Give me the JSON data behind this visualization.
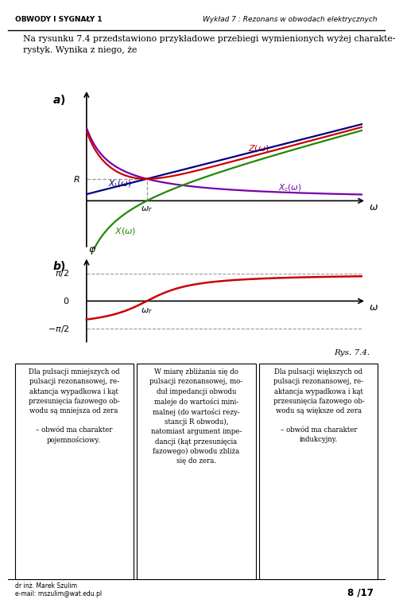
{
  "header_left": "OBWODY I SYGNAŁY 1",
  "header_right": "Wykład 7 : Rezonans w obwodach elektrycznych",
  "intro_text": "Na rysunku 7.4 przedstawiono przykładowe przebiegi wymienionych wyżej charakte-\nrystyk. Wynika z niego, że",
  "fig_caption": "Rys. 7.4.",
  "background_color": "#ffffff",
  "footer_left": "dr inż. Marek Szulim\ne-mail: mszulim@wat.edu.pl",
  "footer_right": "8 /17",
  "box1_text": "Dla pulsacji mniejszych od\npulsacji rezonansowej, re-\naktancja wypadkowa i kąt\nprzesunięcia fazowego ob-\nwodu są mniejsza od zera\n\n– obwód ma charakter\npojemnościowy.",
  "box2_text": "W miarę zbliżania się do\npulsacji rezonansowej, mo-\nduł impedancji obwodu\nmaleje do wartości mini-\nmalnej (do wartości rezy-\nstancji R obwodu),\nnatomiast argument impe-\ndancji (kąt przesunięcia\nfazowego) obwodu zbliża\nsię do zera.",
  "box3_text": "Dla pulsacji większych od\npulsacji rezonansowej, re-\naktancja wypadkowa i kąt\nprzesunięcia fazowego ob-\nwodu są większe od zera\n\n– obwód ma charakter\nindukcyjny.",
  "colors": {
    "red": "#cc0000",
    "green": "#228800",
    "blue": "#000080",
    "purple": "#7700aa",
    "black": "#000000",
    "gray": "#999999"
  }
}
